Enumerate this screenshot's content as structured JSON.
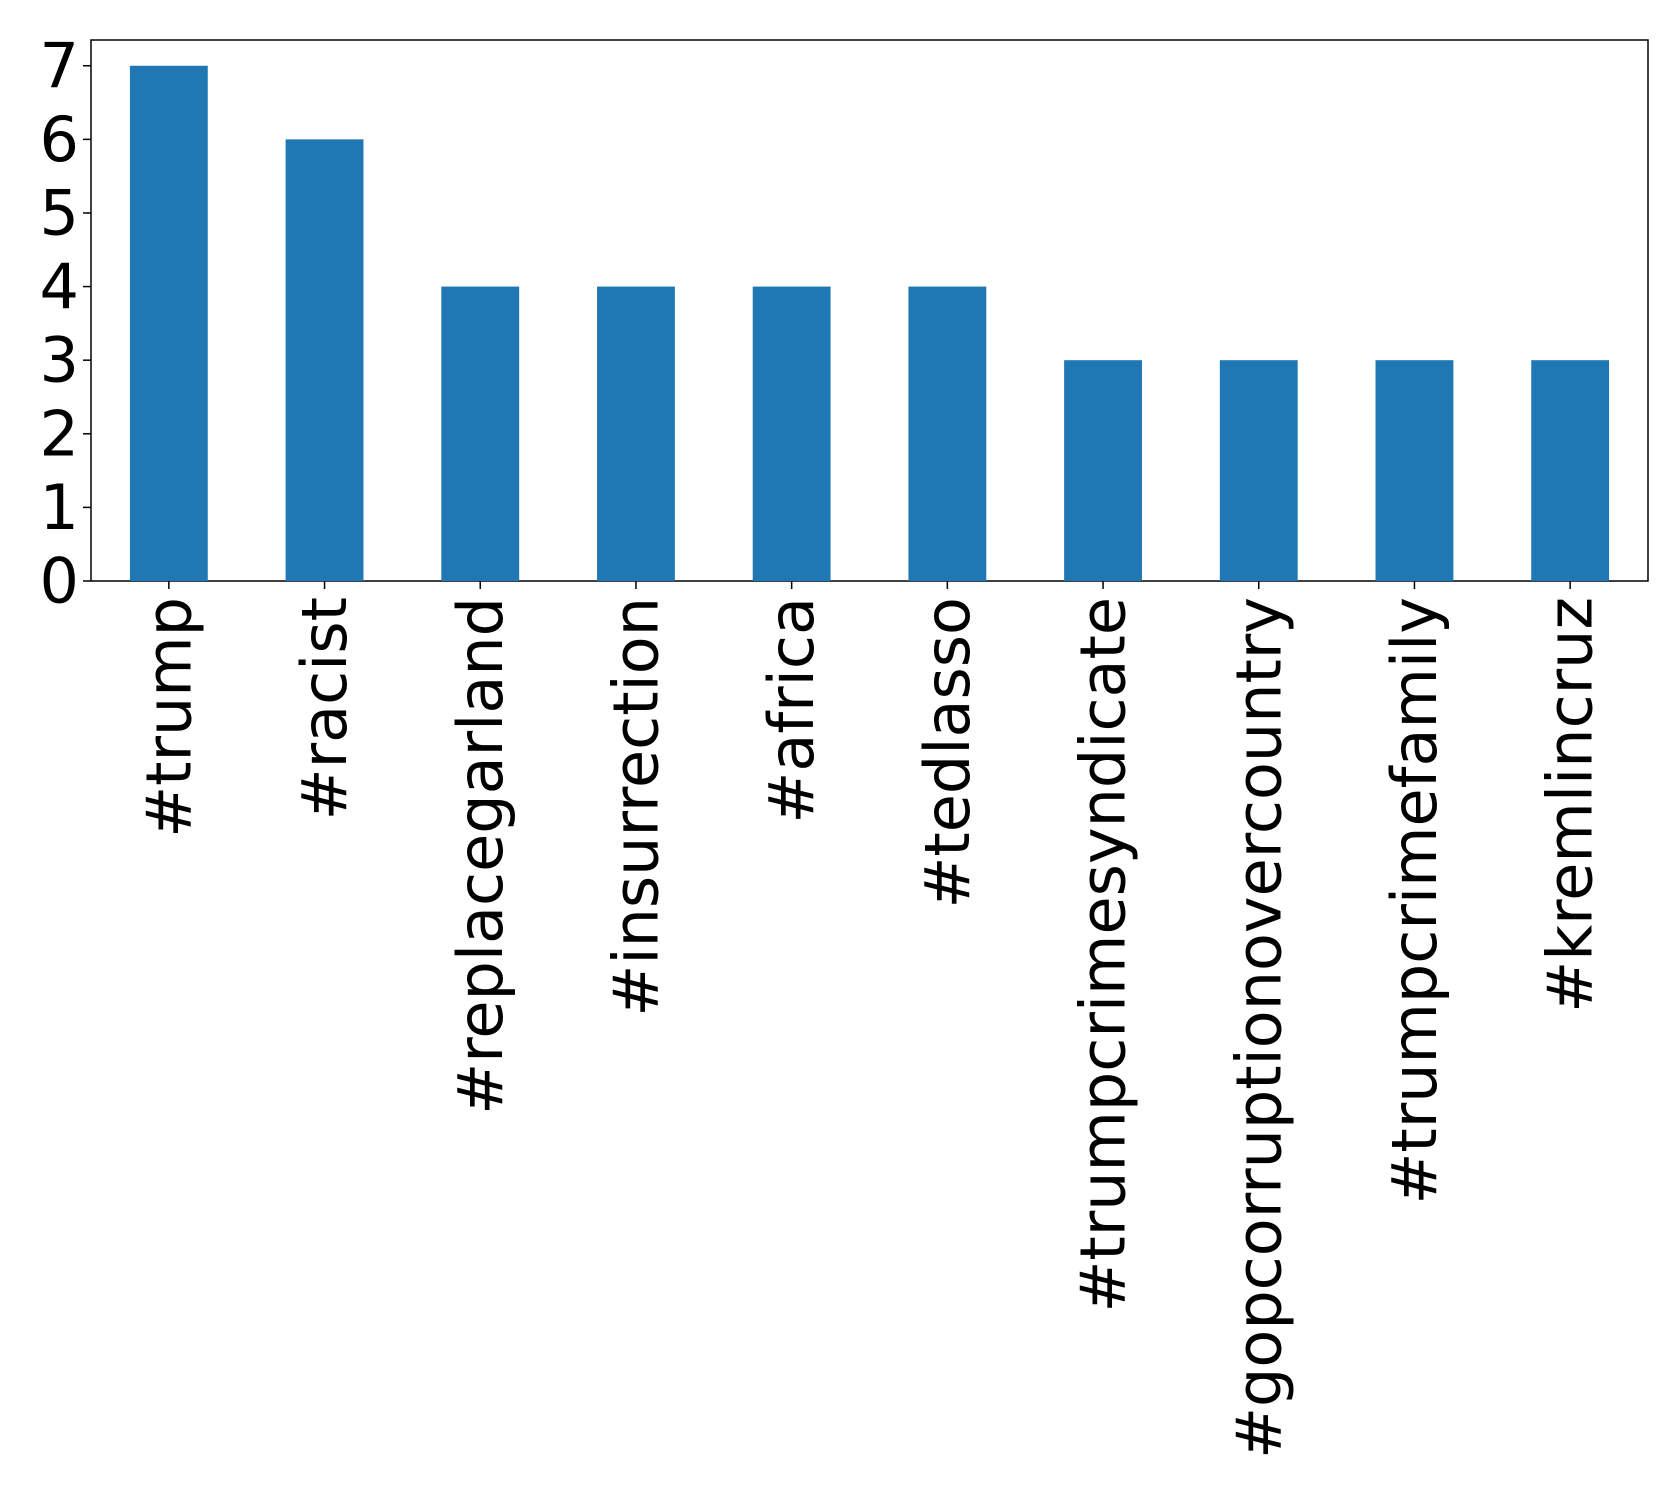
{
  "chart_data": {
    "type": "bar",
    "categories": [
      "#trump",
      "#racist",
      "#replacegarland",
      "#insurrection",
      "#africa",
      "#tedlasso",
      "#trumpcrimesyndicate",
      "#gopcorruptionovercountry",
      "#trumpcrimefamily",
      "#kremlincruz"
    ],
    "values": [
      7,
      6,
      4,
      4,
      4,
      4,
      3,
      3,
      3,
      3
    ],
    "color": "#1f77b4",
    "ylim": [
      0,
      7.35
    ],
    "yticks": [
      0,
      1,
      2,
      3,
      4,
      5,
      6,
      7
    ],
    "grid": false
  }
}
